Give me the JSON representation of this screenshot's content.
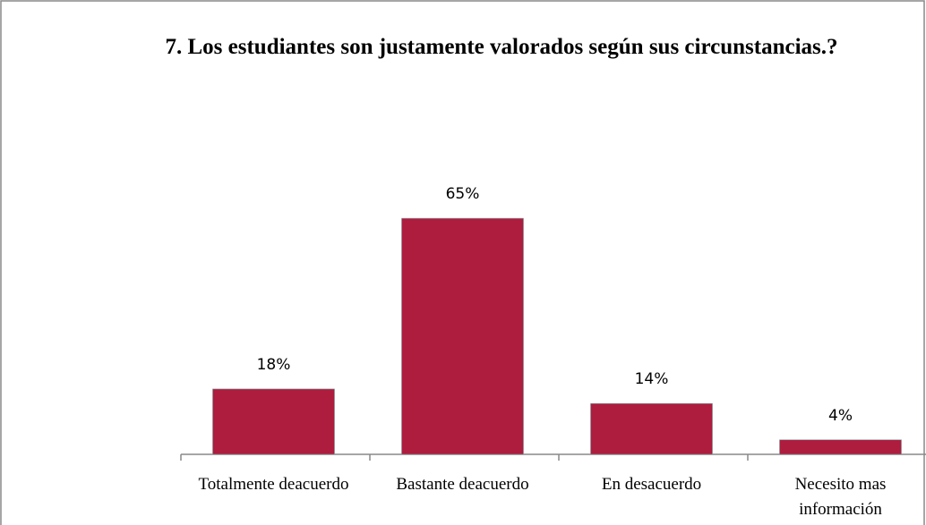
{
  "chart_data": {
    "type": "bar",
    "title": "7. Los estudiantes son justamente valorados según sus circunstancias.?",
    "categories": [
      "Totalmente deacuerdo",
      "Bastante deacuerdo",
      "En desacuerdo",
      "Necesito mas información"
    ],
    "values": [
      18,
      65,
      14,
      4
    ],
    "value_labels": [
      "18%",
      "65%",
      "14%",
      "4%"
    ],
    "color": "#ae1c3e"
  }
}
